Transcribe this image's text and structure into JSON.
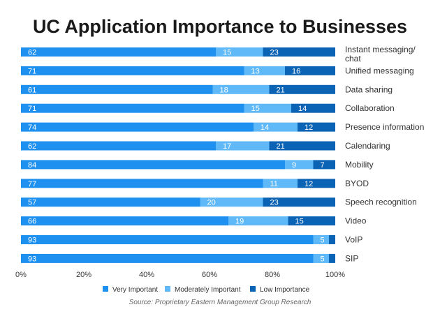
{
  "chart_data": {
    "type": "bar",
    "orientation": "horizontal",
    "stacked": true,
    "title": "UC Application Importance to Businesses",
    "source": "Source: Proprietary Eastern Management Group Research",
    "categories": [
      "Instant messaging/ chat",
      "Unified messaging",
      "Data sharing",
      "Collaboration",
      "Presence information",
      "Calendaring",
      "Mobility",
      "BYOD",
      "Speech recognition",
      "Video",
      "VoIP",
      "SIP"
    ],
    "series": [
      {
        "name": "Very Important",
        "color": "#1e90f0",
        "values": [
          62,
          71,
          61,
          71,
          74,
          62,
          84,
          77,
          57,
          66,
          93,
          93
        ]
      },
      {
        "name": "Moderately Important",
        "color": "#5fb8f7",
        "values": [
          15,
          13,
          18,
          15,
          14,
          17,
          9,
          11,
          20,
          19,
          5,
          5
        ]
      },
      {
        "name": "Low Importance",
        "color": "#0b63b5",
        "values": [
          23,
          16,
          21,
          14,
          12,
          21,
          7,
          12,
          23,
          15,
          2,
          2
        ]
      }
    ],
    "xlim": [
      0,
      100
    ],
    "x_ticks": [
      "0%",
      "20%",
      "40%",
      "60%",
      "80%",
      "100%"
    ],
    "x_tick_values": [
      0,
      20,
      40,
      60,
      80,
      100
    ],
    "legend_position": "bottom",
    "grid": false
  }
}
